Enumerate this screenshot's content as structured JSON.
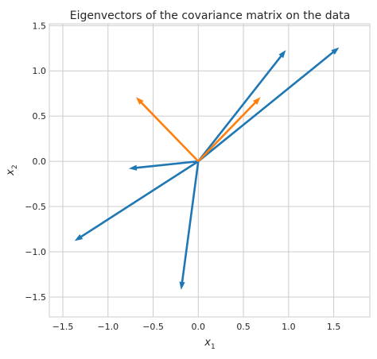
{
  "chart_data": {
    "type": "quiver",
    "title": "Eigenvectors of the covariance matrix on the data",
    "xlabel": "x",
    "xlabel_sub": "1",
    "ylabel": "x",
    "ylabel_sub": "2",
    "xlim": [
      -1.65,
      1.9
    ],
    "ylim": [
      -1.72,
      1.52
    ],
    "xticks": [
      -1.5,
      -1.0,
      -0.5,
      0.0,
      0.5,
      1.0,
      1.5
    ],
    "xtick_labels": [
      "−1.5",
      "−1.0",
      "−0.5",
      "0.0",
      "0.5",
      "1.0",
      "1.5"
    ],
    "yticks": [
      1.5,
      1.0,
      0.5,
      0.0,
      -0.5,
      -1.0,
      -1.5
    ],
    "ytick_labels": [
      "1.5",
      "1.0",
      "0.5",
      "0.0",
      "−0.5",
      "−1.0",
      "−1.5"
    ],
    "grid": true,
    "origin": [
      0,
      0
    ],
    "series": [
      {
        "color": "#1f77b4",
        "vectors": [
          [
            0.97,
            1.23
          ],
          [
            1.56,
            1.26
          ],
          [
            -0.77,
            -0.08
          ],
          [
            -1.37,
            -0.88
          ],
          [
            -0.19,
            -1.42
          ]
        ]
      },
      {
        "color": "#ff7f0e",
        "vectors": [
          [
            -0.69,
            0.71
          ],
          [
            0.69,
            0.71
          ]
        ]
      }
    ]
  }
}
